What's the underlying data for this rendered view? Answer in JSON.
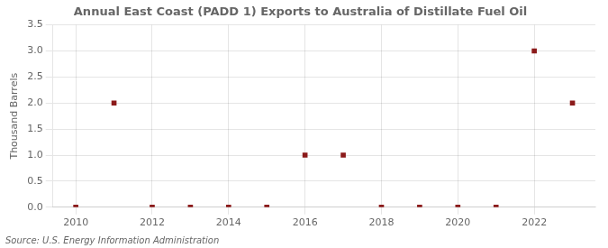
{
  "chart_data": {
    "type": "scatter",
    "title": "Annual East Coast (PADD 1) Exports to Australia of Distillate Fuel Oil",
    "y_label": "Thousand Barrels",
    "annotations": [
      "Source: U.S. Energy Information Administration"
    ],
    "x": [
      2010,
      2011,
      2012,
      2013,
      2014,
      2015,
      2016,
      2017,
      2018,
      2019,
      2020,
      2021,
      2022,
      2023
    ],
    "values": [
      0,
      2,
      0,
      0,
      0,
      0,
      1,
      1,
      0,
      0,
      0,
      0,
      3,
      2
    ],
    "color": "#8b1a1a",
    "marker": "square",
    "xlim": [
      2009.4,
      2023.6
    ],
    "xticks": [
      2010,
      2012,
      2014,
      2016,
      2018,
      2020,
      2022
    ],
    "ylim": [
      0,
      3.5
    ],
    "yticks": [
      {
        "value": 0.0,
        "label": "0.0"
      },
      {
        "value": 0.5,
        "label": "0.5"
      },
      {
        "value": 1.0,
        "label": "1.0"
      },
      {
        "value": 1.5,
        "label": "1.5"
      },
      {
        "value": 2.0,
        "label": "2.0"
      },
      {
        "value": 2.5,
        "label": "2.5"
      },
      {
        "value": 3.0,
        "label": "3.0"
      },
      {
        "value": 3.5,
        "label": "3.5"
      }
    ],
    "grid": true
  }
}
